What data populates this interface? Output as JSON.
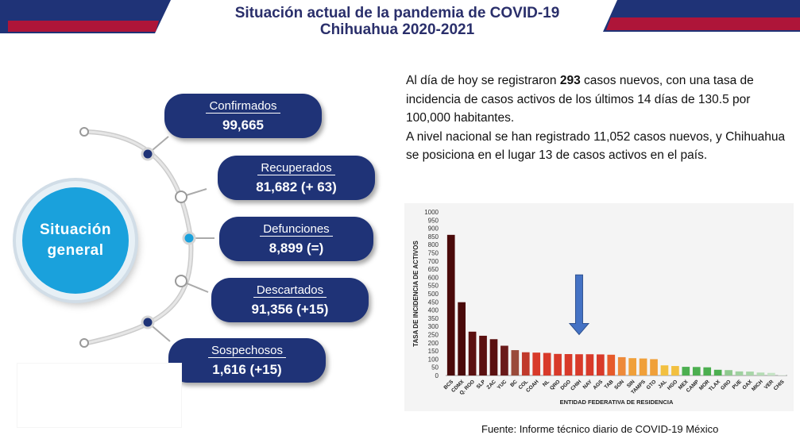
{
  "title_line1": "Situación actual de la pandemia de COVID-19",
  "title_line2": "Chihuahua 2020-2021",
  "center_label": "Situación\ngeneral",
  "stats": [
    {
      "label": "Confirmados",
      "value": "99,665"
    },
    {
      "label": "Recuperados",
      "value": "81,682 (+ 63)"
    },
    {
      "label": "Defunciones",
      "value": "8,899 (=)"
    },
    {
      "label": "Descartados",
      "value": "91,356 (+15)"
    },
    {
      "label": "Sospechosos",
      "value": "1,616 (+15)"
    }
  ],
  "summary": {
    "p1_pre": "Al día de hoy se registraron ",
    "p1_bold": "293",
    "p1_post": " casos nuevos, con una tasa de incidencia de casos activos de los últimos 14 días de 130.5 por 100,000 habitantes.",
    "p2": "A nivel nacional se han registrado 11,052 casos nuevos, y Chihuahua se posiciona en el lugar 13 de casos activos en el país."
  },
  "source": "Fuente: Informe técnico diario de COVID-19 México",
  "colors": {
    "navy": "#1f3377",
    "cyan": "#1aa1dc",
    "title": "#2a2f6b",
    "accent_red": "#c8102e",
    "arrow": "#4472c4"
  },
  "chart_data": {
    "type": "bar",
    "xlabel": "ENTIDAD FEDERATIVA DE RESIDENCIA",
    "ylabel": "TASA DE INCIDENCIA DE ACTIVOS",
    "ylim": [
      0,
      1000
    ],
    "yticks": [
      0,
      50,
      100,
      150,
      200,
      250,
      300,
      350,
      400,
      450,
      500,
      550,
      600,
      650,
      700,
      750,
      800,
      850,
      900,
      950,
      1000
    ],
    "categories": [
      "BCS",
      "CDMX",
      "Q. ROO",
      "SLP",
      "ZAC",
      "YUC",
      "BC",
      "COL",
      "COAH",
      "NL",
      "QRO",
      "DGO",
      "CHIH",
      "NAY",
      "AGS",
      "TAB",
      "SON",
      "SIN",
      "TAMPS",
      "GTO",
      "JAL",
      "HGO",
      "MEX",
      "CAMP",
      "MOR",
      "TLAX",
      "GRO",
      "PUE",
      "OAX",
      "MICH",
      "VER",
      "CHIS"
    ],
    "values": [
      860,
      448,
      268,
      243,
      222,
      182,
      155,
      142,
      140,
      138,
      132,
      131,
      130,
      130,
      129,
      127,
      112,
      106,
      104,
      100,
      62,
      58,
      53,
      52,
      50,
      35,
      33,
      25,
      24,
      18,
      16,
      3
    ],
    "bar_colors": [
      "#4a0a0a",
      "#4a0a0a",
      "#5a1010",
      "#5a1010",
      "#5a1010",
      "#6a1a1a",
      "#9a4a3a",
      "#c0392b",
      "#d83a2a",
      "#d83a2a",
      "#d83a2a",
      "#d83a2a",
      "#d83a2a",
      "#d83a2a",
      "#d83a2a",
      "#e65a2a",
      "#ee8a3a",
      "#f0a03a",
      "#f0a03a",
      "#f0a03a",
      "#f2c040",
      "#f2c040",
      "#4caf50",
      "#4caf50",
      "#4caf50",
      "#4caf50",
      "#8fc98f",
      "#9fd1a0",
      "#a8d5a8",
      "#b5dcb5",
      "#c5e3c5",
      "#dcefdc"
    ],
    "highlight_category": "CHIH",
    "grid": false,
    "legend": "none"
  }
}
